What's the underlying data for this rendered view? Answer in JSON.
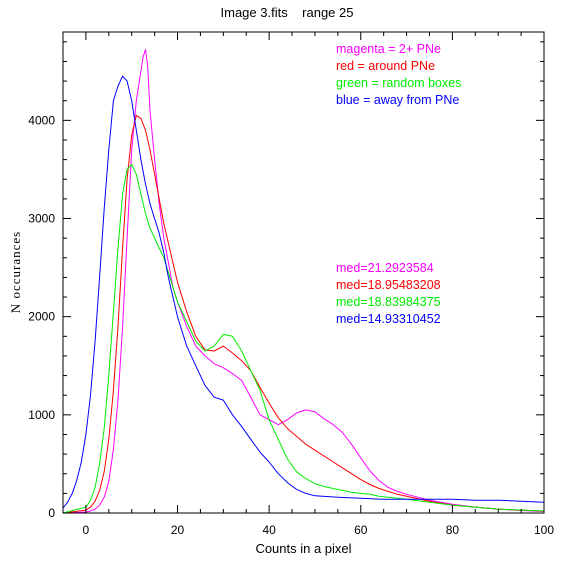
{
  "chart_data": {
    "type": "line",
    "title": "Image 3.fits    range 25",
    "xlabel": "Counts in a pixel",
    "ylabel": "N occurances",
    "xlim": [
      -5,
      100
    ],
    "ylim": [
      0,
      4900
    ],
    "xticks": [
      0,
      20,
      40,
      60,
      80,
      100
    ],
    "yticks": [
      0,
      1000,
      2000,
      3000,
      4000
    ],
    "grid": false,
    "legend_placement": "top-right",
    "series": [
      {
        "name": "magenta = 2+ PNe",
        "color": "#ff00ff",
        "median_label": "med=21.2923584",
        "x": [
          -5,
          0,
          1,
          2,
          3,
          4,
          5,
          6,
          7,
          8,
          9,
          10,
          11,
          12,
          12.5,
          13,
          13.5,
          14,
          15,
          16,
          17,
          18,
          19,
          20,
          22,
          24,
          26,
          28,
          30,
          32,
          34,
          36,
          38,
          40,
          42,
          44,
          46,
          48,
          50,
          52,
          54,
          56,
          58,
          60,
          62,
          64,
          66,
          68,
          70,
          75,
          80,
          85,
          90,
          95,
          100
        ],
        "y": [
          0,
          10,
          20,
          40,
          80,
          160,
          320,
          650,
          1150,
          1900,
          2800,
          3700,
          4200,
          4500,
          4650,
          4720,
          4550,
          4100,
          3600,
          3150,
          2800,
          2550,
          2300,
          2150,
          1900,
          1700,
          1600,
          1520,
          1480,
          1420,
          1350,
          1180,
          1000,
          950,
          900,
          950,
          1020,
          1050,
          1030,
          960,
          900,
          820,
          700,
          560,
          430,
          330,
          260,
          220,
          190,
          130,
          90,
          60,
          40,
          25,
          15
        ]
      },
      {
        "name": "red = around PNe",
        "color": "#ff0000",
        "median_label": "med=18.95483208",
        "x": [
          -5,
          0,
          1,
          2,
          3,
          4,
          5,
          6,
          7,
          8,
          9,
          10,
          11,
          12,
          13,
          14,
          15,
          16,
          17,
          18,
          19,
          20,
          22,
          24,
          26,
          28,
          30,
          32,
          34,
          36,
          38,
          40,
          42,
          44,
          46,
          48,
          50,
          52,
          54,
          56,
          58,
          60,
          62,
          64,
          66,
          68,
          70,
          75,
          80,
          85,
          90,
          95,
          100
        ],
        "y": [
          0,
          30,
          60,
          120,
          230,
          420,
          750,
          1250,
          1900,
          2700,
          3400,
          3850,
          4050,
          4020,
          3900,
          3700,
          3450,
          3200,
          2950,
          2750,
          2550,
          2350,
          2050,
          1800,
          1660,
          1650,
          1700,
          1630,
          1550,
          1450,
          1280,
          1120,
          970,
          860,
          780,
          700,
          640,
          580,
          520,
          460,
          400,
          340,
          290,
          250,
          220,
          190,
          170,
          120,
          80,
          60,
          40,
          30,
          20
        ]
      },
      {
        "name": "green = random boxes",
        "color": "#00ee00",
        "median_label": "med=18.83984375",
        "x": [
          -5,
          0,
          1,
          2,
          3,
          4,
          5,
          6,
          7,
          8,
          9,
          10,
          11,
          12,
          13,
          14,
          15,
          16,
          17,
          18,
          19,
          20,
          22,
          24,
          26,
          28,
          30,
          32,
          34,
          36,
          38,
          40,
          42,
          44,
          46,
          48,
          50,
          52,
          54,
          56,
          58,
          60,
          62,
          64,
          66,
          68,
          70,
          75,
          80,
          85,
          90,
          95,
          100
        ],
        "y": [
          0,
          60,
          130,
          260,
          500,
          860,
          1400,
          2050,
          2700,
          3250,
          3500,
          3550,
          3450,
          3250,
          3050,
          2900,
          2800,
          2700,
          2600,
          2450,
          2300,
          2150,
          1950,
          1750,
          1650,
          1700,
          1820,
          1800,
          1650,
          1450,
          1250,
          950,
          750,
          550,
          420,
          350,
          300,
          270,
          250,
          230,
          210,
          200,
          190,
          170,
          160,
          150,
          140,
          110,
          80,
          60,
          40,
          30,
          20
        ]
      },
      {
        "name": "blue = away from PNe",
        "color": "#0000ff",
        "median_label": "med=14.93310452",
        "x": [
          -5,
          -4,
          -3,
          -2,
          -1,
          0,
          1,
          2,
          3,
          4,
          5,
          6,
          7,
          8,
          9,
          10,
          11,
          12,
          13,
          14,
          15,
          16,
          17,
          18,
          19,
          20,
          22,
          24,
          26,
          28,
          30,
          32,
          34,
          36,
          38,
          40,
          42,
          44,
          46,
          48,
          50,
          55,
          60,
          65,
          70,
          75,
          80,
          85,
          90,
          95,
          100
        ],
        "y": [
          50,
          110,
          200,
          330,
          520,
          800,
          1200,
          1750,
          2400,
          3100,
          3700,
          4200,
          4350,
          4450,
          4400,
          4200,
          3900,
          3600,
          3350,
          3150,
          3000,
          2850,
          2650,
          2400,
          2200,
          2000,
          1700,
          1500,
          1300,
          1180,
          1150,
          1000,
          880,
          750,
          620,
          520,
          400,
          310,
          240,
          200,
          175,
          160,
          150,
          140,
          140,
          140,
          140,
          130,
          130,
          120,
          110
        ]
      }
    ]
  }
}
